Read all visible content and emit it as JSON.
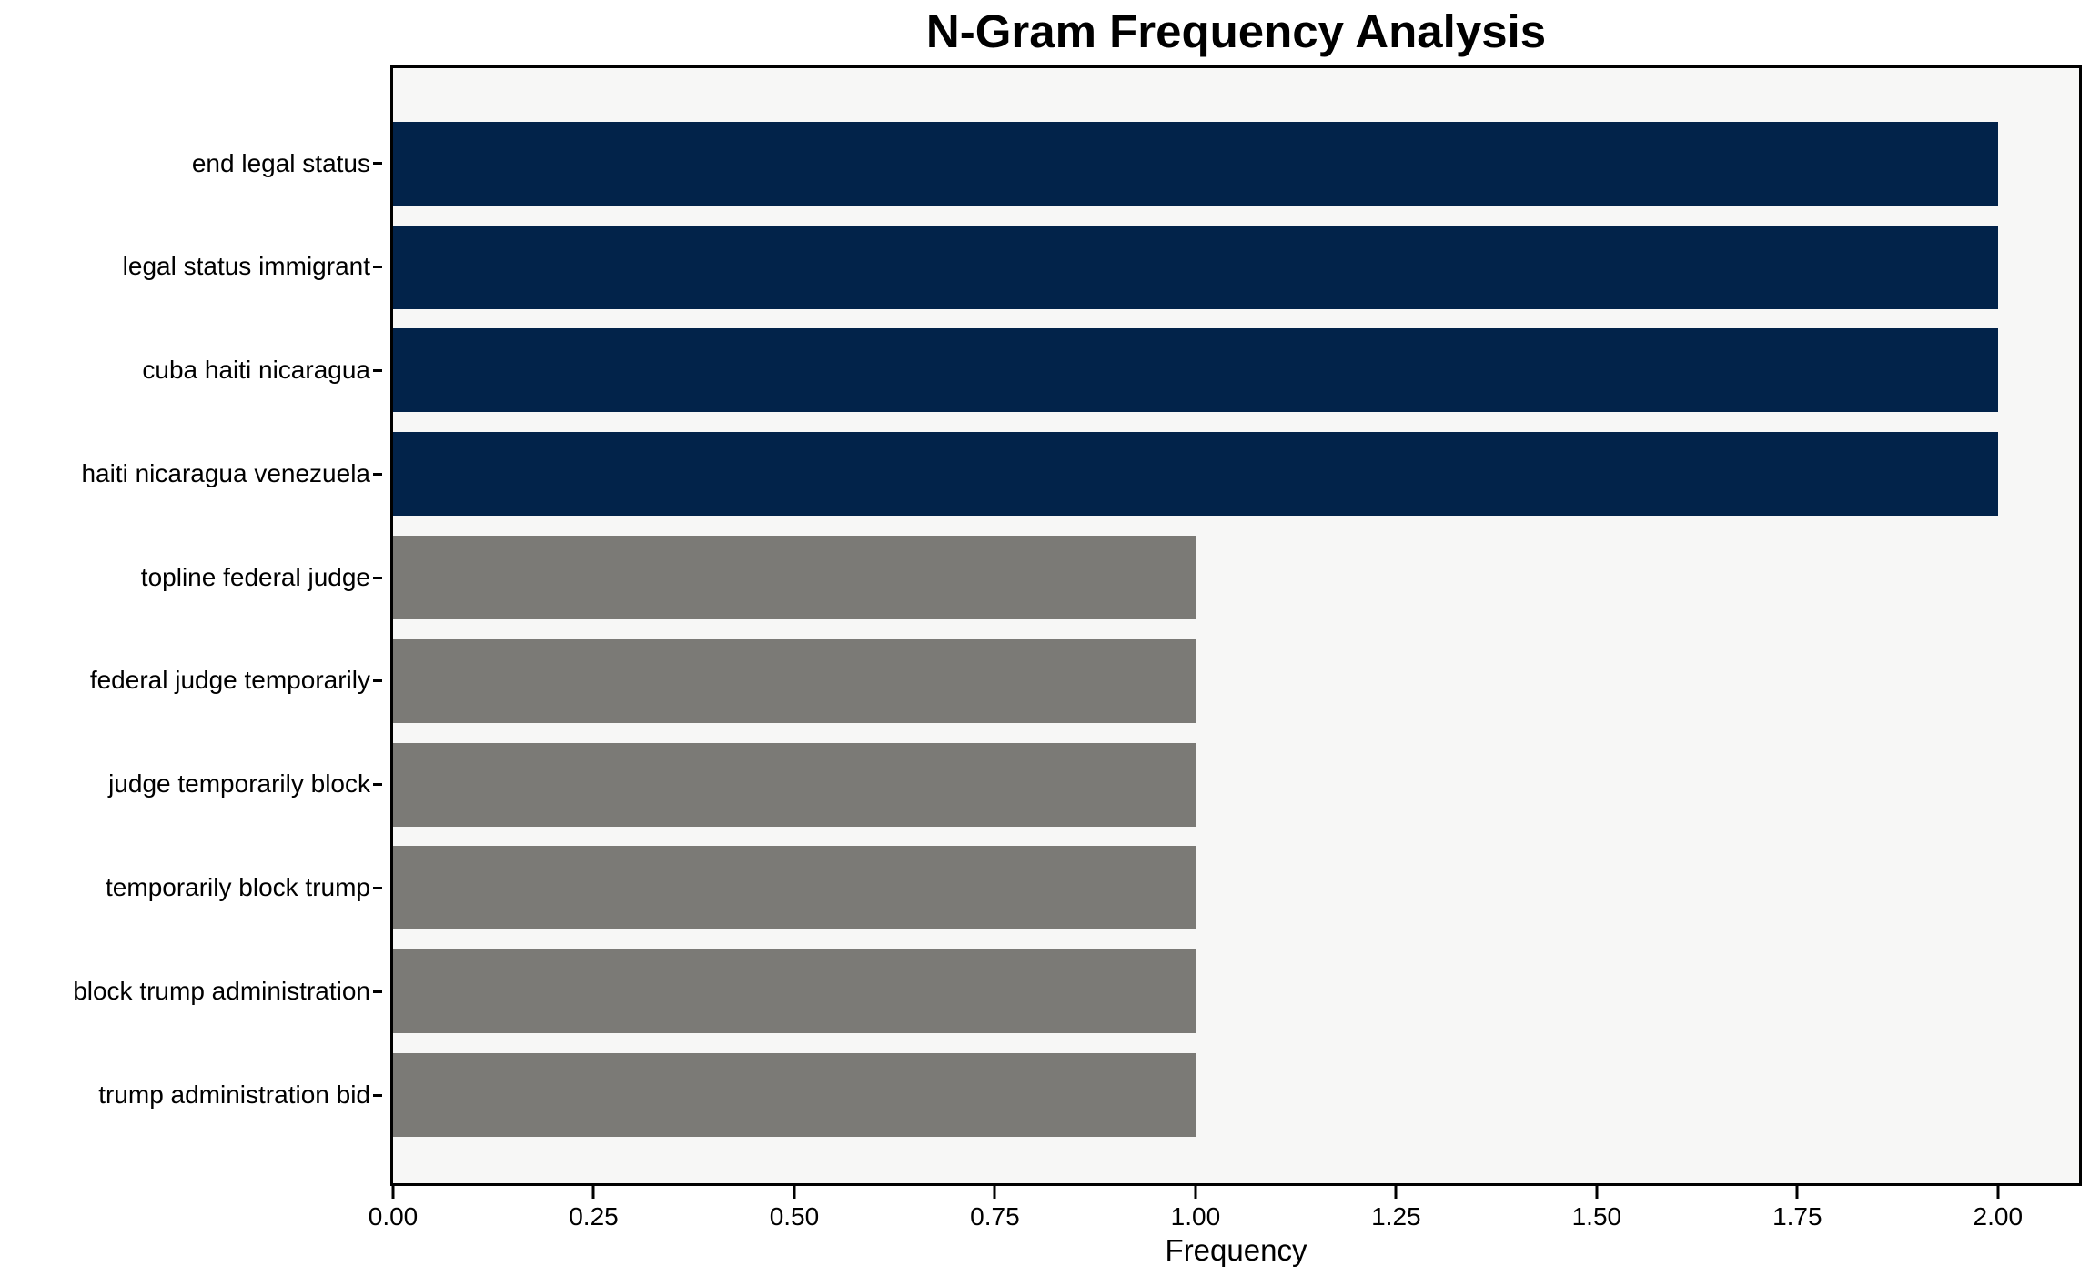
{
  "chart_data": {
    "type": "bar",
    "orientation": "horizontal",
    "title": "N-Gram Frequency Analysis",
    "xlabel": "Frequency",
    "ylabel": "",
    "categories": [
      "end legal status",
      "legal status immigrant",
      "cuba haiti nicaragua",
      "haiti nicaragua venezuela",
      "topline federal judge",
      "federal judge temporarily",
      "judge temporarily block",
      "temporarily block trump",
      "block trump administration",
      "trump administration bid"
    ],
    "values": [
      2,
      2,
      2,
      2,
      1,
      1,
      1,
      1,
      1,
      1
    ],
    "bar_colors": [
      "#02234a",
      "#02234a",
      "#02234a",
      "#02234a",
      "#7b7a76",
      "#7b7a76",
      "#7b7a76",
      "#7b7a76",
      "#7b7a76",
      "#7b7a76"
    ],
    "xlim": [
      0,
      2.1
    ],
    "x_tick_labels": [
      "0.00",
      "0.25",
      "0.50",
      "0.75",
      "1.00",
      "1.25",
      "1.50",
      "1.75",
      "2.00"
    ],
    "x_tick_values": [
      0,
      0.25,
      0.5,
      0.75,
      1.0,
      1.25,
      1.5,
      1.75,
      2.0
    ],
    "grid": false,
    "legend": null,
    "colors": {
      "high_freq_bar": "#02234a",
      "low_freq_bar": "#7b7a76",
      "plot_background": "#f7f7f6",
      "figure_background": "#ffffff",
      "axis": "#000000",
      "text": "#000000"
    }
  }
}
